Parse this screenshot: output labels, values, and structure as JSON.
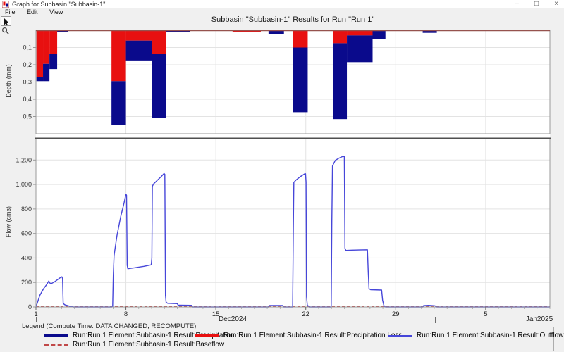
{
  "window": {
    "title": "Graph for Subbasin \"Subbasin-1\"",
    "minimize_glyph": "–",
    "maximize_glyph": "□",
    "close_glyph": "×"
  },
  "menu": {
    "items": [
      "File",
      "Edit",
      "View"
    ]
  },
  "toolbar": {
    "tools": [
      "pointer",
      "zoom"
    ]
  },
  "chart_title": "Subbasin \"Subbasin-1\" Results for Run \"Run 1\"",
  "axes": {
    "depth_label": "Depth (mm)",
    "flow_label": "Flow (cms)"
  },
  "xaxis": {
    "day_min": 1,
    "day_max": 41,
    "ticks": [
      {
        "day": 1,
        "label": "1"
      },
      {
        "day": 8,
        "label": "8"
      },
      {
        "day": 15,
        "label": "15"
      },
      {
        "day": 22,
        "label": "22"
      },
      {
        "day": 29,
        "label": "29"
      },
      {
        "day": 36,
        "label": "5"
      }
    ],
    "month_labels": [
      {
        "id": "dec",
        "label": "Dec2024"
      },
      {
        "id": "jan",
        "label": "Jan2025"
      }
    ]
  },
  "chart_data": [
    {
      "type": "bar",
      "name": "precipitation-hyetograph",
      "ylabel": "Depth (mm)",
      "inverted": true,
      "ylim": [
        0,
        0.6
      ],
      "yticks": [
        {
          "v": 0.1,
          "label": "0,1"
        },
        {
          "v": 0.2,
          "label": "0,2"
        },
        {
          "v": 0.3,
          "label": "0,3"
        },
        {
          "v": 0.4,
          "label": "0,4"
        },
        {
          "v": 0.5,
          "label": "0,5"
        }
      ],
      "series": [
        {
          "name": "Precipitation Loss",
          "color": "#e81010"
        },
        {
          "name": "Precipitation",
          "color": "#0a0a8c"
        }
      ],
      "bars": [
        {
          "start_day": 1.04,
          "end_day": 1.55,
          "loss_mm": 0.27,
          "total_mm": 0.295
        },
        {
          "start_day": 1.55,
          "end_day": 2.05,
          "loss_mm": 0.195,
          "total_mm": 0.295
        },
        {
          "start_day": 2.05,
          "end_day": 2.65,
          "loss_mm": 0.135,
          "total_mm": 0.225
        },
        {
          "start_day": 2.65,
          "end_day": 3.5,
          "loss_mm": 0,
          "total_mm": 0.012
        },
        {
          "start_day": 6.88,
          "end_day": 8.0,
          "loss_mm": 0.295,
          "total_mm": 0.55
        },
        {
          "start_day": 8.0,
          "end_day": 10.0,
          "loss_mm": 0.06,
          "total_mm": 0.175
        },
        {
          "start_day": 10.0,
          "end_day": 11.1,
          "loss_mm": 0.135,
          "total_mm": 0.51
        },
        {
          "start_day": 11.1,
          "end_day": 13.0,
          "loss_mm": 0,
          "total_mm": 0.012
        },
        {
          "start_day": 16.3,
          "end_day": 18.5,
          "loss_mm": 0.012,
          "total_mm": 0.012
        },
        {
          "start_day": 19.1,
          "end_day": 20.3,
          "loss_mm": 0,
          "total_mm": 0.022
        },
        {
          "start_day": 21.0,
          "end_day": 22.15,
          "loss_mm": 0.1,
          "total_mm": 0.475
        },
        {
          "start_day": 24.1,
          "end_day": 25.2,
          "loss_mm": 0.075,
          "total_mm": 0.515
        },
        {
          "start_day": 25.2,
          "end_day": 27.2,
          "loss_mm": 0.03,
          "total_mm": 0.185
        },
        {
          "start_day": 27.2,
          "end_day": 28.2,
          "loss_mm": 0,
          "total_mm": 0.05
        },
        {
          "start_day": 31.1,
          "end_day": 32.2,
          "loss_mm": 0,
          "total_mm": 0.015
        }
      ]
    },
    {
      "type": "line",
      "name": "flow-hydrograph",
      "ylabel": "Flow (cms)",
      "ylim": [
        0,
        1380
      ],
      "yticks": [
        {
          "v": 0,
          "label": "0"
        },
        {
          "v": 200,
          "label": "200"
        },
        {
          "v": 400,
          "label": "400"
        },
        {
          "v": 600,
          "label": "600"
        },
        {
          "v": 800,
          "label": "800"
        },
        {
          "v": 1000,
          "label": "1.000"
        },
        {
          "v": 1200,
          "label": "1.200"
        }
      ],
      "series": [
        {
          "name": "Outflow",
          "color": "#4646d9",
          "style": "solid",
          "points": [
            [
              1,
              0
            ],
            [
              1.05,
              15
            ],
            [
              1.3,
              95
            ],
            [
              1.6,
              150
            ],
            [
              1.85,
              185
            ],
            [
              2.0,
              212
            ],
            [
              2.07,
              198
            ],
            [
              2.15,
              188
            ],
            [
              2.45,
              205
            ],
            [
              2.75,
              228
            ],
            [
              2.95,
              243
            ],
            [
              3.02,
              246
            ],
            [
              3.07,
              232
            ],
            [
              3.12,
              28
            ],
            [
              3.25,
              18
            ],
            [
              3.6,
              7
            ],
            [
              3.9,
              0
            ],
            [
              6.9,
              0
            ],
            [
              6.97,
              5
            ],
            [
              7.02,
              260
            ],
            [
              7.08,
              420
            ],
            [
              7.3,
              580
            ],
            [
              7.6,
              740
            ],
            [
              7.85,
              845
            ],
            [
              8.0,
              921
            ],
            [
              8.05,
              912
            ],
            [
              8.1,
              340
            ],
            [
              8.15,
              312
            ],
            [
              8.7,
              320
            ],
            [
              9.4,
              332
            ],
            [
              9.97,
              344
            ],
            [
              10.02,
              400
            ],
            [
              10.06,
              985
            ],
            [
              10.15,
              1005
            ],
            [
              10.45,
              1035
            ],
            [
              10.75,
              1065
            ],
            [
              10.97,
              1090
            ],
            [
              11.03,
              1083
            ],
            [
              11.08,
              95
            ],
            [
              11.13,
              38
            ],
            [
              11.25,
              30
            ],
            [
              12.0,
              27
            ],
            [
              12.06,
              15
            ],
            [
              13.1,
              13
            ],
            [
              13.2,
              0
            ],
            [
              19.1,
              0
            ],
            [
              19.16,
              12
            ],
            [
              20.2,
              12
            ],
            [
              20.28,
              0
            ],
            [
              20.98,
              0
            ],
            [
              21.03,
              600
            ],
            [
              21.07,
              1018
            ],
            [
              21.25,
              1038
            ],
            [
              21.6,
              1066
            ],
            [
              21.9,
              1086
            ],
            [
              21.98,
              1088
            ],
            [
              22.02,
              1020
            ],
            [
              22.06,
              85
            ],
            [
              22.12,
              14
            ],
            [
              22.3,
              0
            ],
            [
              23.98,
              0
            ],
            [
              24.03,
              700
            ],
            [
              24.08,
              1152
            ],
            [
              24.3,
              1198
            ],
            [
              24.6,
              1216
            ],
            [
              24.93,
              1232
            ],
            [
              25.0,
              1228
            ],
            [
              25.05,
              480
            ],
            [
              25.12,
              462
            ],
            [
              25.6,
              464
            ],
            [
              26.8,
              467
            ],
            [
              26.86,
              290
            ],
            [
              26.92,
              150
            ],
            [
              27.05,
              141
            ],
            [
              27.9,
              138
            ],
            [
              27.98,
              55
            ],
            [
              28.08,
              12
            ],
            [
              28.2,
              0
            ],
            [
              31.1,
              0
            ],
            [
              31.17,
              11
            ],
            [
              31.55,
              13
            ],
            [
              32.05,
              10
            ],
            [
              32.2,
              0
            ],
            [
              41,
              0
            ]
          ]
        },
        {
          "name": "Baseflow",
          "color": "#c04848",
          "style": "dashed",
          "points": [
            [
              1,
              3
            ],
            [
              41,
              3
            ]
          ]
        }
      ]
    }
  ],
  "legend": {
    "title": "Legend (Compute Time: DATA CHANGED, RECOMPUTE)",
    "entries": [
      {
        "label": "Run:Run 1 Element:Subbasin-1 Result:Precipitation",
        "color": "#0a0a8c",
        "style": "thick"
      },
      {
        "label": "Run:Run 1 Element:Subbasin-1 Result:Precipitation Loss",
        "color": "#e81010",
        "style": "thick"
      },
      {
        "label": "Run:Run 1 Element:Subbasin-1 Result:Outflow",
        "color": "#4646d9",
        "style": "thin"
      },
      {
        "label": "Run:Run 1 Element:Subbasin-1 Result:Baseflow",
        "color": "#c04848",
        "style": "dashed"
      }
    ]
  },
  "colors": {
    "grid": "#e3e3e3",
    "frame": "#9a9a9a",
    "divider": "#4f4f4f",
    "hyetograph_zero_line": "#96524e",
    "background": "#f0f0f0",
    "plot": "#ffffff"
  }
}
